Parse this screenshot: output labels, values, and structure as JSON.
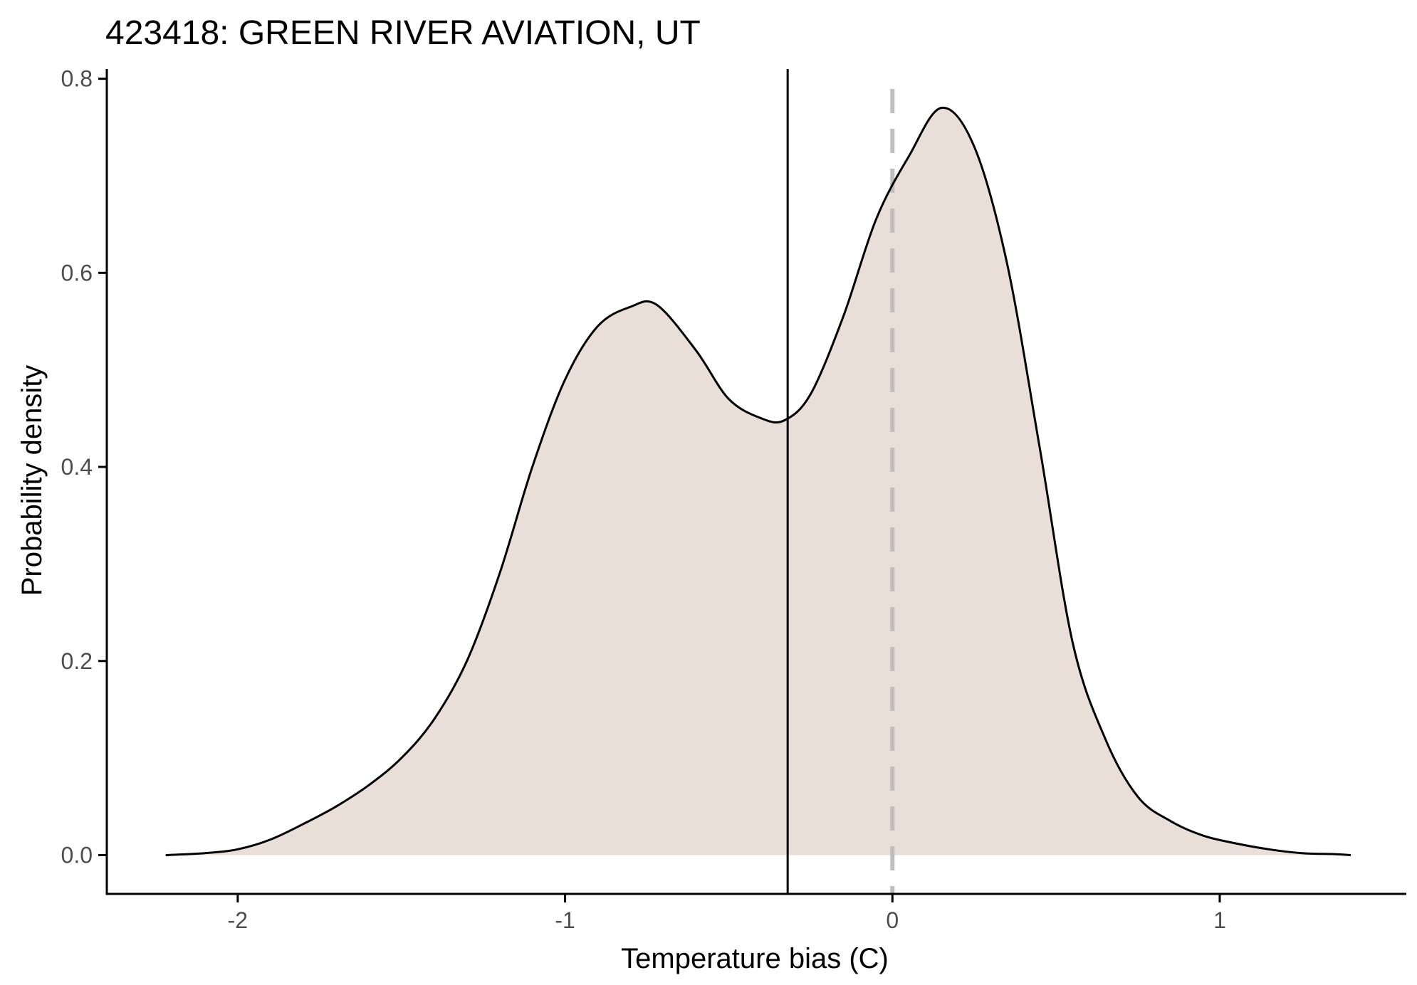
{
  "chart_data": {
    "type": "area",
    "title": "423418: GREEN RIVER AVIATION, UT",
    "xlabel": "Temperature bias (C)",
    "ylabel": "Probability density",
    "xlim": [
      -2.4,
      1.57
    ],
    "ylim": [
      -0.04,
      0.81
    ],
    "x_ticks": [
      -2,
      -1,
      0,
      1
    ],
    "x_tick_labels": [
      "-2",
      "-1",
      "0",
      "1"
    ],
    "y_ticks": [
      0.0,
      0.2,
      0.4,
      0.6,
      0.8
    ],
    "y_tick_labels": [
      "0.0",
      "0.2",
      "0.4",
      "0.6",
      "0.8"
    ],
    "grid": false,
    "legend": "none",
    "fill_color": "#eaded8",
    "line_color": "#000000",
    "density": {
      "x": [
        -2.22,
        -2.1,
        -2.0,
        -1.9,
        -1.8,
        -1.7,
        -1.6,
        -1.5,
        -1.4,
        -1.3,
        -1.2,
        -1.1,
        -1.0,
        -0.9,
        -0.8,
        -0.72,
        -0.6,
        -0.5,
        -0.4,
        -0.33,
        -0.25,
        -0.15,
        -0.05,
        0.05,
        0.15,
        0.25,
        0.35,
        0.45,
        0.55,
        0.65,
        0.75,
        0.85,
        0.95,
        1.05,
        1.15,
        1.25,
        1.35,
        1.4
      ],
      "y": [
        0.0,
        0.002,
        0.006,
        0.016,
        0.032,
        0.05,
        0.072,
        0.1,
        0.14,
        0.2,
        0.29,
        0.4,
        0.49,
        0.545,
        0.565,
        0.567,
        0.52,
        0.47,
        0.45,
        0.448,
        0.475,
        0.555,
        0.655,
        0.72,
        0.77,
        0.73,
        0.61,
        0.42,
        0.22,
        0.12,
        0.06,
        0.035,
        0.02,
        0.012,
        0.006,
        0.002,
        0.001,
        0.0
      ]
    },
    "vlines": [
      {
        "x": -0.32,
        "style": "solid",
        "color": "#000000"
      },
      {
        "x": 0.0,
        "style": "dashed",
        "color": "#bebebe"
      }
    ]
  }
}
